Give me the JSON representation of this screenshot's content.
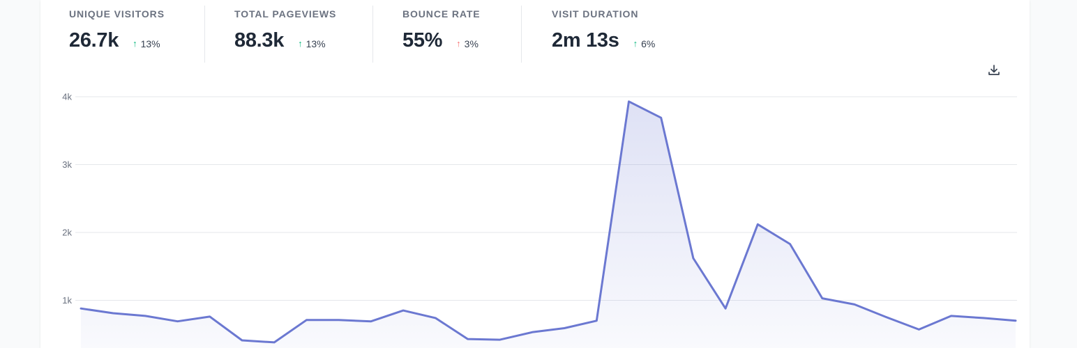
{
  "stats": [
    {
      "label": "UNIQUE VISITORS",
      "value": "26.7k",
      "arrow": "↑",
      "change": "13%",
      "trend": "good"
    },
    {
      "label": "TOTAL PAGEVIEWS",
      "value": "88.3k",
      "arrow": "↑",
      "change": "13%",
      "trend": "good"
    },
    {
      "label": "BOUNCE RATE",
      "value": "55%",
      "arrow": "↑",
      "change": "3%",
      "trend": "bad"
    },
    {
      "label": "VISIT DURATION",
      "value": "2m 13s",
      "arrow": "↑",
      "change": "6%",
      "trend": "good"
    }
  ],
  "toolbar": {
    "download_icon": "download-icon"
  },
  "colors": {
    "line": "#6b78d1",
    "good": "#10b981",
    "bad": "#f87171",
    "grid": "#e5e7eb"
  },
  "chart_data": {
    "type": "area",
    "y_ticks": [
      "1k",
      "2k",
      "3k",
      "4k"
    ],
    "y_tick_values": [
      1000,
      2000,
      3000,
      4000
    ],
    "ylim": [
      0,
      4000
    ],
    "grid": true,
    "series": [
      {
        "values": [
          880,
          810,
          770,
          690,
          760,
          410,
          380,
          710,
          710,
          690,
          850,
          740,
          430,
          420,
          530,
          590,
          700,
          3930,
          3690,
          1620,
          880,
          2120,
          1830,
          1030,
          940,
          750,
          570,
          770,
          740,
          700
        ]
      }
    ]
  }
}
